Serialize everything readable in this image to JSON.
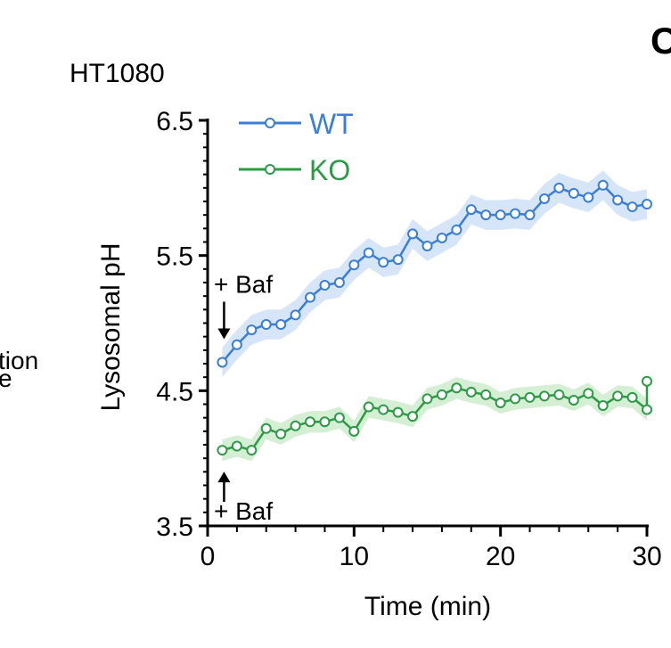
{
  "cell_line": "HT1080",
  "panel_letter": "C",
  "left_partial_lines": [
    "tion",
    "e"
  ],
  "colors": {
    "WT": "#3a7fd5",
    "KO": "#2e9a48",
    "WT_band": "#cfe0f7",
    "KO_band": "#cdeccd",
    "axis": "#000000"
  },
  "chart_data": {
    "type": "line",
    "title": "",
    "xlabel": "Time (min)",
    "ylabel": "Lysosomal pH",
    "xlim": [
      0,
      30
    ],
    "ylim": [
      3.5,
      6.5
    ],
    "x_ticks": [
      0,
      10,
      20,
      30
    ],
    "x_tick_labels": [
      "0",
      "10",
      "20",
      "30"
    ],
    "y_ticks": [
      3.5,
      4.5,
      5.5,
      6.5
    ],
    "y_tick_labels": [
      "3.5",
      "4.5",
      "5.5",
      "6.5"
    ],
    "legend_position": "top-left",
    "grid": false,
    "x": [
      1,
      2,
      3,
      4,
      5,
      6,
      7,
      8,
      9,
      10,
      11,
      12,
      13,
      14,
      15,
      16,
      17,
      18,
      19,
      20,
      21,
      22,
      23,
      24,
      25,
      26,
      27,
      28,
      29,
      30
    ],
    "series": [
      {
        "name": "WT",
        "color": "#3a7fd5",
        "values": [
          4.71,
          4.84,
          4.95,
          4.99,
          4.99,
          5.06,
          5.19,
          5.28,
          5.3,
          5.43,
          5.52,
          5.45,
          5.47,
          5.66,
          5.57,
          5.63,
          5.69,
          5.84,
          5.8,
          5.8,
          5.81,
          5.8,
          5.92,
          6.0,
          5.96,
          5.93,
          6.02,
          5.91,
          5.86,
          5.88
        ],
        "band": 0.11
      },
      {
        "name": "KO",
        "color": "#2e9a48",
        "values": [
          4.06,
          4.09,
          4.06,
          4.22,
          4.18,
          4.24,
          4.27,
          4.27,
          4.3,
          4.2,
          4.38,
          4.36,
          4.34,
          4.31,
          4.44,
          4.47,
          4.52,
          4.49,
          4.47,
          4.41,
          4.44,
          4.45,
          4.46,
          4.47,
          4.43,
          4.48,
          4.39,
          4.46,
          4.45,
          4.36
        ],
        "band": 0.08
      }
    ],
    "extra_point": {
      "series": "KO",
      "x": 30,
      "y": 4.57
    },
    "annotations": [
      {
        "text": "+ Baf",
        "series": "WT",
        "x": 1,
        "direction": "down"
      },
      {
        "text": "+ Baf",
        "series": "KO",
        "x": 1,
        "direction": "up"
      }
    ]
  }
}
